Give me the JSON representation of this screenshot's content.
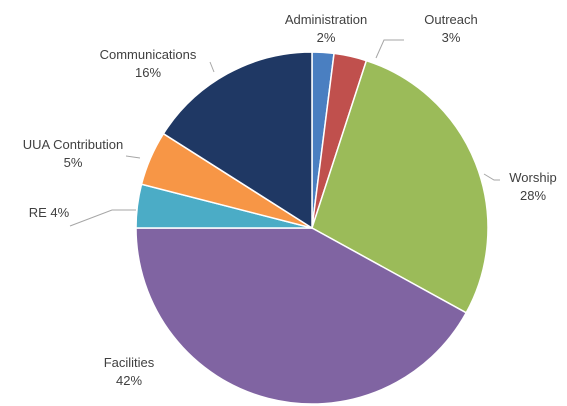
{
  "chart_data": {
    "type": "pie",
    "title": "",
    "slices": [
      {
        "label": "Administration",
        "pct_label": "2%",
        "value": 2,
        "color": "#4a7fc1"
      },
      {
        "label": "Outreach",
        "pct_label": "3%",
        "value": 3,
        "color": "#c0504d"
      },
      {
        "label": "Worship",
        "pct_label": "28%",
        "value": 28,
        "color": "#9bbb59"
      },
      {
        "label": "Facilities",
        "pct_label": "42%",
        "value": 42,
        "color": "#8064a2"
      },
      {
        "label": "RE",
        "pct_label": "4%",
        "value": 4,
        "color": "#4bacc6"
      },
      {
        "label": "UUA Contribution",
        "pct_label": "5%",
        "value": 5,
        "color": "#f79646"
      },
      {
        "label": "Communications",
        "pct_label": "16%",
        "value": 16,
        "color": "#1f3864"
      }
    ],
    "data_labels": [
      {
        "lines": [
          "Administration",
          "2%"
        ]
      },
      {
        "lines": [
          "Outreach",
          "3%"
        ]
      },
      {
        "lines": [
          "Worship",
          "28%"
        ]
      },
      {
        "lines": [
          "Facilities",
          "42%"
        ]
      },
      {
        "lines": [
          "RE 4%"
        ]
      },
      {
        "lines": [
          "UUA Contribution",
          "5%"
        ]
      },
      {
        "lines": [
          "Communications",
          "16%"
        ]
      }
    ],
    "legend": "none"
  }
}
